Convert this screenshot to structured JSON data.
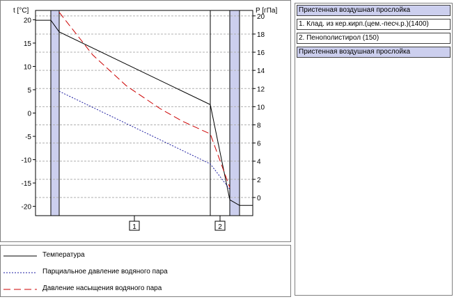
{
  "chart_data": {
    "type": "line",
    "left_axis_label": "t [°C]",
    "right_axis_label": "P [гПа]",
    "left_ticks": [
      20,
      15,
      10,
      5,
      0,
      -5,
      -10,
      -15,
      -20
    ],
    "right_ticks": [
      20,
      18,
      16,
      14,
      12,
      10,
      8,
      6,
      4,
      2,
      0
    ],
    "left_range": [
      -22,
      22
    ],
    "right_range": [
      -2,
      20.6
    ],
    "layer_markers": [
      "1",
      "2"
    ],
    "series": [
      {
        "name": "Температура",
        "axis": "left",
        "style": "solid",
        "color": "#000000",
        "x": [
          0,
          0.135,
          0.2,
          1.55,
          1.835,
          1.9,
          2.0
        ],
        "y": [
          19.9,
          19.9,
          17.4,
          1.8,
          -18.6,
          -19.8,
          -19.8
        ]
      },
      {
        "name": "Парциальное давление водяного пара",
        "axis": "right",
        "style": "dotted",
        "color": "#1a1aa0",
        "x": [
          0.2,
          1.55,
          1.835
        ],
        "y": [
          11.7,
          3.7,
          0.9
        ]
      },
      {
        "name": "Давление насыщения водяного пара",
        "axis": "right",
        "style": "dashed",
        "color": "#cc0000",
        "x": [
          0.2,
          0.5,
          0.8,
          1.1,
          1.3,
          1.55,
          1.835
        ],
        "y": [
          20.4,
          15.7,
          12.3,
          9.8,
          8.4,
          7.0,
          1.1
        ]
      }
    ]
  },
  "legend": {
    "items": [
      {
        "label": "Температура",
        "style": "solid",
        "color": "#000000"
      },
      {
        "label": "Парциальное давление водяного пара",
        "style": "dotted",
        "color": "#1a1aa0"
      },
      {
        "label": "Давление насыщения водяного пара",
        "style": "dashed",
        "color": "#cc0000"
      }
    ]
  },
  "layers": [
    {
      "label": "Пристенная воздушная прослойка",
      "kind": "air"
    },
    {
      "label": "1. Клад. из кер.кирп.(цем.-песч.р.)(1400)",
      "kind": "material"
    },
    {
      "label": "2. Пенополистирол (150)",
      "kind": "material"
    },
    {
      "label": "Пристенная воздушная прослойка",
      "kind": "air"
    }
  ],
  "colors": {
    "air_layer_fill": "#cccfee",
    "grid": "#b0b0b0",
    "frame": "#000000"
  }
}
